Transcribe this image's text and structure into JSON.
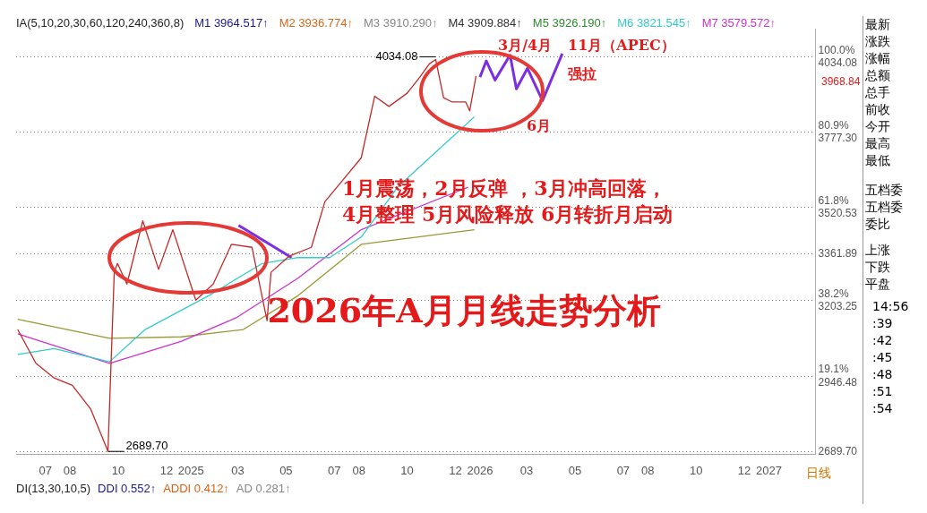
{
  "chart_data": {
    "type": "line",
    "title": "2026年A月月线走势分析",
    "xlim": [
      "2024-05-25",
      "2027-03-01"
    ],
    "xticks": [
      {
        "value": "2024-07-01",
        "label": "07"
      },
      {
        "value": "2024-08-01",
        "label": "08"
      },
      {
        "value": "2024-10-01",
        "label": "10"
      },
      {
        "value": "2024-12-01",
        "label": "12"
      },
      {
        "value": "2025-01-01",
        "label": "2025"
      },
      {
        "value": "2025-03-01",
        "label": "03"
      },
      {
        "value": "2025-05-01",
        "label": "05"
      },
      {
        "value": "2025-07-01",
        "label": "07"
      },
      {
        "value": "2025-08-01",
        "label": "08"
      },
      {
        "value": "2025-10-01",
        "label": "10"
      },
      {
        "value": "2025-12-01",
        "label": "12"
      },
      {
        "value": "2026-01-01",
        "label": "2026"
      },
      {
        "value": "2026-03-01",
        "label": "03"
      },
      {
        "value": "2026-05-01",
        "label": "05"
      },
      {
        "value": "2026-07-01",
        "label": "07"
      },
      {
        "value": "2026-08-01",
        "label": "08"
      },
      {
        "value": "2026-10-01",
        "label": "10"
      },
      {
        "value": "2026-12-01",
        "label": "12"
      },
      {
        "value": "2027-01-01",
        "label": "2027"
      }
    ],
    "ylim": [
      2680,
      4130
    ],
    "yticks": [
      {
        "value": 2689.7,
        "label": "2689.70"
      },
      {
        "value": 2946.48,
        "label": "19.1%\n2946.48"
      },
      {
        "value": 3203.25,
        "label": "38.2%\n3203.25"
      },
      {
        "value": 3361.89,
        "label": "3361.89"
      },
      {
        "value": 3520.53,
        "label": "61.8%\n3520.53"
      },
      {
        "value": 3777.3,
        "label": "80.9%\n3777.30"
      },
      {
        "value": 4034.08,
        "label": "100.0%\n4034.08"
      }
    ],
    "grid": "y",
    "legend": false,
    "marker": "none",
    "series": [
      {
        "color": "#c62828",
        "x": [
          "2024-05-27",
          "2024-06-19",
          "2024-07-12",
          "2024-08-04",
          "2024-08-27",
          "2024-09-18",
          "2024-09-26",
          "2024-09-30",
          "2024-10-12",
          "2024-11-01",
          "2024-11-21",
          "2024-12-09",
          "2025-01-07",
          "2025-01-29",
          "2025-02-21",
          "2025-03-19",
          "2025-04-07",
          "2025-04-12",
          "2025-05-05",
          "2025-06-02",
          "2025-06-19",
          "2025-07-12",
          "2025-08-04",
          "2025-08-21",
          "2025-09-08",
          "2025-10-01",
          "2025-10-17",
          "2025-10-29",
          "2025-11-06",
          "2025-11-16",
          "2025-11-27",
          "2025-12-14",
          "2025-12-19",
          "2025-12-27"
        ],
        "values": [
          3105,
          2990,
          2940,
          2915,
          2835,
          2690,
          3300,
          3330,
          3260,
          3475,
          3310,
          3445,
          3205,
          3260,
          3395,
          3385,
          3135,
          3300,
          3355,
          3385,
          3540,
          3615,
          3690,
          3900,
          3865,
          3910,
          3965,
          4010,
          4025,
          3895,
          3880,
          3880,
          3850,
          3969
        ]
      },
      {
        "color": "#33cccc",
        "x": [
          "2024-05-27",
          "2024-07-12",
          "2024-09-20",
          "2024-11-04",
          "2025-01-23",
          "2025-04-01",
          "2025-05-16",
          "2025-06-25",
          "2025-08-04",
          "2025-09-19",
          "2025-12-25"
        ],
        "values": [
          3020,
          3040,
          2995,
          3105,
          3220,
          3330,
          3350,
          3350,
          3420,
          3590,
          3830
        ]
      },
      {
        "color": "#cc33cc",
        "x": [
          "2024-05-27",
          "2024-09-20",
          "2024-12-20",
          "2025-02-27",
          "2025-05-16",
          "2025-08-04",
          "2025-12-17"
        ],
        "values": [
          3090,
          2990,
          3065,
          3145,
          3280,
          3445,
          3590
        ]
      },
      {
        "color": "#999933",
        "x": [
          "2024-05-27",
          "2024-09-20",
          "2024-12-20",
          "2025-03-08",
          "2025-05-16",
          "2025-08-04",
          "2025-12-25"
        ],
        "values": [
          3140,
          3075,
          3080,
          3105,
          3220,
          3395,
          3445
        ]
      },
      {
        "color": "#7b2fe0",
        "x": [
          "2025-03-02",
          "2025-05-08"
        ],
        "values": [
          3460,
          3350
        ]
      },
      {
        "color": "#7b2fe0",
        "x": [
          "2026-01-01",
          "2026-01-09",
          "2026-01-20",
          "2026-02-08",
          "2026-02-16",
          "2026-03-02",
          "2026-03-21",
          "2026-04-15"
        ],
        "values": [
          3965,
          4020,
          3955,
          4040,
          3925,
          3995,
          3885,
          4045
        ]
      }
    ],
    "annotations": [
      "IA(5,10,20,30,60,120,240,360,8)",
      "M1 3964.517↑",
      "M2 3936.774↑",
      "M3 3910.290↑",
      "M4 3909.884↑",
      "M5 3926.190↑",
      "M6 3821.545↑",
      "M7 3579.572↑",
      "1月震荡，2月反弹 ，3月冲高回落，",
      "4月整理 5月风险释放 6月转折月启动",
      "3月/4月",
      "11月（APEC）",
      "强拉",
      "6月",
      {
        "text": "4034.08",
        "x": "2025-11-06",
        "y": 4034.08
      },
      {
        "text": "2689.70",
        "x": "2024-09-18",
        "y": 2689.7
      },
      "3968.84",
      "DI(13,30,10,5)",
      "DDI 0.552↑",
      "ADDI 0.412↑",
      "AD 0.281↑",
      "日线",
      "最新",
      "涨跌",
      "涨幅",
      "总额",
      "总手",
      "前收",
      "今开",
      "最高",
      "最低",
      "五档委",
      "五档委",
      "委比",
      "上涨",
      "下跌",
      "平盘",
      "14:56",
      ":39",
      ":42",
      ":45",
      ":48",
      ":51",
      ":54"
    ]
  }
}
